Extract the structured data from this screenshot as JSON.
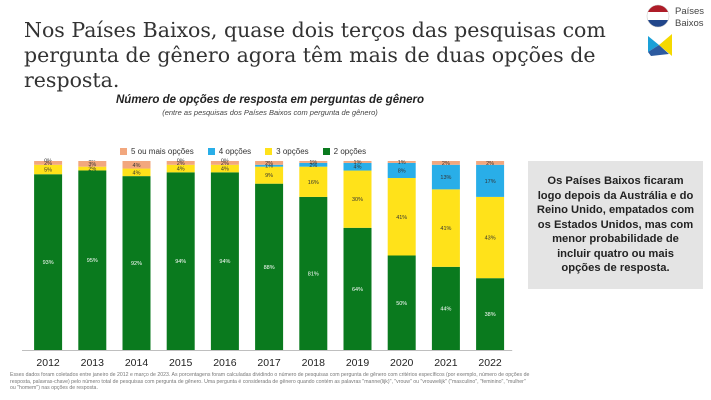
{
  "headline": "Nos Países Baixos, quase dois terços das pesquisas com pergunta de gênero agora têm mais de duas opções de resposta.",
  "logo": {
    "line1": "Países",
    "line2": "Baixos",
    "flag_colors": [
      "#ae1c28",
      "#ffffff",
      "#21468b"
    ],
    "emblem_colors": [
      "#1aa0d8",
      "#f5d900",
      "#2c5aa0"
    ]
  },
  "chart_data": {
    "type": "bar",
    "stacked": true,
    "title": "Número de opções de resposta em perguntas de gênero",
    "subtitle": "(entre as pesquisas dos Países Baixos com pergunta de gênero)",
    "categories": [
      "2012",
      "2013",
      "2014",
      "2015",
      "2016",
      "2017",
      "2018",
      "2019",
      "2020",
      "2021",
      "2022"
    ],
    "ylim": [
      0,
      100
    ],
    "legend_position": "top",
    "series": [
      {
        "name": "2 opções",
        "color": "#0a7a1e",
        "values": [
          93,
          95,
          92,
          94,
          94,
          88,
          81,
          64,
          50,
          44,
          38
        ],
        "labels": [
          "93%",
          "95%",
          "92%",
          "94%",
          "94%",
          "88%",
          "81%",
          "64%",
          "50%",
          "44%",
          "38%"
        ]
      },
      {
        "name": "3 opções",
        "color": "#ffe21a",
        "values": [
          5,
          2,
          4,
          4,
          4,
          9,
          16,
          30,
          41,
          41,
          43
        ],
        "labels": [
          "5%",
          "2%",
          "4%",
          "4%",
          "4%",
          "9%",
          "16%",
          "30%",
          "41%",
          "41%",
          "43%"
        ]
      },
      {
        "name": "4 opções",
        "color": "#29aee8",
        "values": [
          0,
          0,
          0,
          0,
          0,
          1,
          2,
          4,
          8,
          13,
          17
        ],
        "labels": [
          "0%",
          "0%",
          "0%",
          "0%",
          "0%",
          "1%",
          "2%",
          "4%",
          "8%",
          "13%",
          "17%"
        ]
      },
      {
        "name": "5 ou mais opções",
        "color": "#f2a77e",
        "values": [
          2,
          3,
          4,
          2,
          2,
          2,
          1,
          1,
          1,
          2,
          2
        ],
        "labels": [
          "2%",
          "3%",
          "4%",
          "2%",
          "2%",
          "2%",
          "1%",
          "1%",
          "1%",
          "2%",
          "2%"
        ]
      }
    ],
    "legend_order": [
      "5 ou mais opções",
      "4 opções",
      "3 opções",
      "2 opções"
    ]
  },
  "callout": "Os Países Baixos ficaram logo depois da Austrália e do Reino Unido, empatados com os Estados Unidos, mas com menor probabilidade de incluir quatro ou mais opções de resposta.",
  "footnote": "Esses dados foram coletados entre janeiro de 2012 e março de 2023. As porcentagens foram calculadas dividindo o número de pesquisas com pergunta de gênero com critérios específicos (por exemplo, número de opções de resposta, palavras-chave) pelo número total de pesquisas com pergunta de gênero. Uma pergunta é considerada de gênero quando contém as palavras \"manne(lijk)\", \"vrouw\" ou \"vrouwelijk\" (\"masculino\", \"feminino\", \"mulher\" ou \"homem\") nas opções de resposta."
}
